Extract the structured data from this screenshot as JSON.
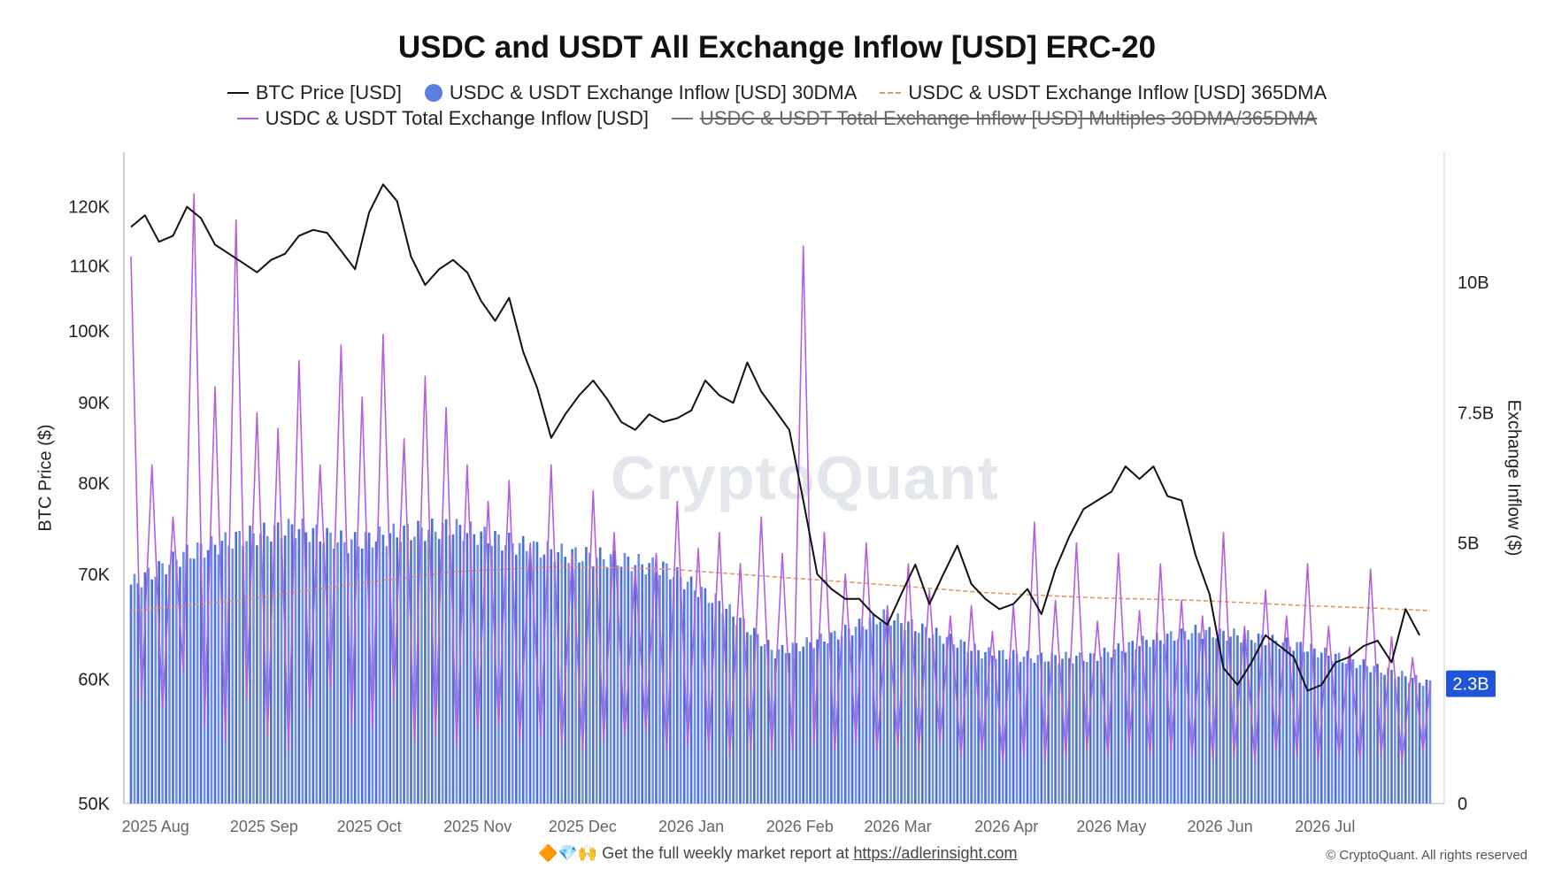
{
  "chart_data": {
    "type": "line",
    "title": "USDC and USDT All Exchange Inflow [USD] ERC-20",
    "legend": [
      {
        "name": "BTC Price [USD]",
        "style": "line",
        "color": "#111111"
      },
      {
        "name": "USDC & USDT Exchange Inflow [USD] 30DMA",
        "style": "dot",
        "color": "#5b7fe0"
      },
      {
        "name": "USDC & USDT Exchange Inflow [USD] 365DMA",
        "style": "dash",
        "color": "#e39a5b"
      },
      {
        "name": "USDC & USDT Total Exchange Inflow [USD]",
        "style": "line",
        "color": "#b45fe0"
      },
      {
        "name": "USDC & USDT Total Exchange Inflow [USD] Multiples 30DMA/365DMA",
        "style": "line",
        "color": "#111111",
        "hidden": true
      }
    ],
    "legend_placement": "top",
    "ylabel_left": "BTC Price ($)",
    "ylabel_right": "Exchange Inflow ($)",
    "y_left_scale": "log",
    "y_left_range": [
      50000,
      130000
    ],
    "y_left_ticks": [
      {
        "value": 50000,
        "label": "50K"
      },
      {
        "value": 60000,
        "label": "60K"
      },
      {
        "value": 70000,
        "label": "70K"
      },
      {
        "value": 80000,
        "label": "80K"
      },
      {
        "value": 90000,
        "label": "90K"
      },
      {
        "value": 100000,
        "label": "100K"
      },
      {
        "value": 110000,
        "label": "110K"
      },
      {
        "value": 120000,
        "label": "120K"
      }
    ],
    "y_right_range": [
      0,
      12500000000
    ],
    "y_right_ticks": [
      {
        "value": 0,
        "label": "0"
      },
      {
        "value": 5000000000,
        "label": "5B"
      },
      {
        "value": 7500000000,
        "label": "7.5B"
      },
      {
        "value": 10000000000,
        "label": "10B"
      }
    ],
    "x_ticks": [
      "2025 Aug",
      "2025 Sep",
      "2025 Oct",
      "2025 Nov",
      "2025 Dec",
      "2026 Jan",
      "2026 Feb",
      "2026 Mar",
      "2026 Apr",
      "2026 May",
      "2026 Jun",
      "2026 Jul"
    ],
    "x_range": [
      "2025-07-25",
      "2026-07-31"
    ],
    "current_value_label": {
      "value": 2300000000,
      "label": "2.3B",
      "color": "#1f55d6"
    },
    "grid": false,
    "btc_price": {
      "dates": [
        "2025-07-25",
        "2025-07-29",
        "2025-08-02",
        "2025-08-06",
        "2025-08-10",
        "2025-08-14",
        "2025-08-18",
        "2025-08-22",
        "2025-08-26",
        "2025-08-30",
        "2025-09-03",
        "2025-09-07",
        "2025-09-11",
        "2025-09-15",
        "2025-09-19",
        "2025-09-23",
        "2025-09-27",
        "2025-10-01",
        "2025-10-05",
        "2025-10-09",
        "2025-10-13",
        "2025-10-17",
        "2025-10-21",
        "2025-10-25",
        "2025-10-29",
        "2025-11-02",
        "2025-11-06",
        "2025-11-10",
        "2025-11-14",
        "2025-11-18",
        "2025-11-22",
        "2025-11-26",
        "2025-11-30",
        "2025-12-04",
        "2025-12-08",
        "2025-12-12",
        "2025-12-16",
        "2025-12-20",
        "2025-12-24",
        "2025-12-28",
        "2026-01-01",
        "2026-01-05",
        "2026-01-09",
        "2026-01-13",
        "2026-01-17",
        "2026-01-21",
        "2026-01-25",
        "2026-01-29",
        "2026-02-02",
        "2026-02-06",
        "2026-02-10",
        "2026-02-14",
        "2026-02-18",
        "2026-02-22",
        "2026-02-26",
        "2026-03-02",
        "2026-03-06",
        "2026-03-10",
        "2026-03-14",
        "2026-03-18",
        "2026-03-22",
        "2026-03-26",
        "2026-03-30",
        "2026-04-03",
        "2026-04-07",
        "2026-04-11",
        "2026-04-15",
        "2026-04-19",
        "2026-04-23",
        "2026-04-27",
        "2026-05-01",
        "2026-05-05",
        "2026-05-09",
        "2026-05-13",
        "2026-05-17",
        "2026-05-21",
        "2026-05-25",
        "2026-05-29",
        "2026-06-02",
        "2026-06-06",
        "2026-06-10",
        "2026-06-14",
        "2026-06-18",
        "2026-06-22",
        "2026-06-26",
        "2026-06-30",
        "2026-07-04",
        "2026-07-08",
        "2026-07-12",
        "2026-07-16",
        "2026-07-20",
        "2026-07-24",
        "2026-07-28"
      ],
      "values": [
        116500,
        118500,
        114000,
        115000,
        120000,
        118000,
        113500,
        112000,
        110500,
        109000,
        111000,
        112000,
        115000,
        116000,
        115500,
        112500,
        109500,
        119000,
        124000,
        121000,
        111500,
        107000,
        109500,
        111000,
        109000,
        104500,
        101500,
        105000,
        97000,
        92000,
        85500,
        88500,
        91000,
        93000,
        90500,
        87500,
        86500,
        88500,
        87500,
        88000,
        89000,
        93000,
        91000,
        90000,
        95500,
        91500,
        89000,
        86500,
        78000,
        70000,
        68500,
        67500,
        67500,
        66000,
        65000,
        68000,
        71000,
        67000,
        70000,
        73000,
        69000,
        67500,
        66500,
        67000,
        68500,
        66000,
        70500,
        74000,
        77000,
        78000,
        79000,
        82000,
        80500,
        82000,
        78500,
        78000,
        72000,
        68000,
        61000,
        59500,
        61500,
        64000,
        63000,
        62000,
        59000,
        59500,
        61500,
        62000,
        63000,
        63500,
        61500,
        66500,
        64000
      ]
    },
    "inflow_30dma": {
      "dates": [
        "2025-07-25",
        "2025-08-10",
        "2025-08-25",
        "2025-09-10",
        "2025-09-25",
        "2025-10-10",
        "2025-10-25",
        "2025-11-10",
        "2025-11-25",
        "2025-12-10",
        "2025-12-25",
        "2026-01-10",
        "2026-01-25",
        "2026-02-10",
        "2026-02-25",
        "2026-03-10",
        "2026-03-25",
        "2026-04-10",
        "2026-04-25",
        "2026-05-10",
        "2026-05-25",
        "2026-06-10",
        "2026-06-25",
        "2026-07-10",
        "2026-07-31"
      ],
      "values": [
        4200000000,
        4800000000,
        5100000000,
        5300000000,
        5000000000,
        5200000000,
        5300000000,
        5000000000,
        4800000000,
        4700000000,
        4500000000,
        3800000000,
        2900000000,
        3200000000,
        3600000000,
        3300000000,
        2900000000,
        2800000000,
        2800000000,
        3100000000,
        3300000000,
        3200000000,
        3000000000,
        2700000000,
        2300000000
      ]
    },
    "inflow_365dma": {
      "dates": [
        "2025-07-25",
        "2025-08-25",
        "2025-09-25",
        "2025-10-25",
        "2025-11-25",
        "2025-12-25",
        "2026-01-25",
        "2026-02-25",
        "2026-03-25",
        "2026-04-25",
        "2026-05-25",
        "2026-06-25",
        "2026-07-15",
        "2026-07-31"
      ],
      "values": [
        3700000000,
        3900000000,
        4200000000,
        4450000000,
        4550000000,
        4500000000,
        4350000000,
        4200000000,
        4050000000,
        3950000000,
        3900000000,
        3800000000,
        3750000000,
        3700000000
      ]
    },
    "inflow_total_daily": {
      "dates": [
        "2025-07-25",
        "2025-07-28",
        "2025-07-31",
        "2025-08-03",
        "2025-08-06",
        "2025-08-09",
        "2025-08-12",
        "2025-08-15",
        "2025-08-18",
        "2025-08-21",
        "2025-08-24",
        "2025-08-27",
        "2025-08-30",
        "2025-09-02",
        "2025-09-05",
        "2025-09-08",
        "2025-09-11",
        "2025-09-14",
        "2025-09-17",
        "2025-09-20",
        "2025-09-23",
        "2025-09-26",
        "2025-09-29",
        "2025-10-02",
        "2025-10-05",
        "2025-10-08",
        "2025-10-11",
        "2025-10-14",
        "2025-10-17",
        "2025-10-20",
        "2025-10-23",
        "2025-10-26",
        "2025-10-29",
        "2025-11-01",
        "2025-11-04",
        "2025-11-07",
        "2025-11-10",
        "2025-11-13",
        "2025-11-16",
        "2025-11-19",
        "2025-11-22",
        "2025-11-25",
        "2025-11-28",
        "2025-12-01",
        "2025-12-04",
        "2025-12-07",
        "2025-12-10",
        "2025-12-13",
        "2025-12-16",
        "2025-12-19",
        "2025-12-22",
        "2025-12-25",
        "2025-12-28",
        "2025-12-31",
        "2026-01-03",
        "2026-01-06",
        "2026-01-09",
        "2026-01-12",
        "2026-01-15",
        "2026-01-18",
        "2026-01-21",
        "2026-01-24",
        "2026-01-27",
        "2026-01-30",
        "2026-02-02",
        "2026-02-05",
        "2026-02-08",
        "2026-02-11",
        "2026-02-14",
        "2026-02-17",
        "2026-02-20",
        "2026-02-23",
        "2026-02-26",
        "2026-03-01",
        "2026-03-04",
        "2026-03-07",
        "2026-03-10",
        "2026-03-13",
        "2026-03-16",
        "2026-03-19",
        "2026-03-22",
        "2026-03-25",
        "2026-03-28",
        "2026-03-31",
        "2026-04-03",
        "2026-04-06",
        "2026-04-09",
        "2026-04-12",
        "2026-04-15",
        "2026-04-18",
        "2026-04-21",
        "2026-04-24",
        "2026-04-27",
        "2026-04-30",
        "2026-05-03",
        "2026-05-06",
        "2026-05-09",
        "2026-05-12",
        "2026-05-15",
        "2026-05-18",
        "2026-05-21",
        "2026-05-24",
        "2026-05-27",
        "2026-05-30",
        "2026-06-02",
        "2026-06-05",
        "2026-06-08",
        "2026-06-11",
        "2026-06-14",
        "2026-06-17",
        "2026-06-20",
        "2026-06-23",
        "2026-06-26",
        "2026-06-29",
        "2026-07-02",
        "2026-07-05",
        "2026-07-08",
        "2026-07-11",
        "2026-07-14",
        "2026-07-17",
        "2026-07-20",
        "2026-07-23",
        "2026-07-26",
        "2026-07-29",
        "2026-07-31"
      ],
      "values": [
        10500000000,
        2000000000,
        6500000000,
        1800000000,
        5500000000,
        2500000000,
        11700000000,
        1500000000,
        8000000000,
        1200000000,
        11200000000,
        2000000000,
        7500000000,
        1300000000,
        7200000000,
        1000000000,
        8500000000,
        1800000000,
        6500000000,
        2200000000,
        8800000000,
        1500000000,
        7800000000,
        1400000000,
        9000000000,
        2000000000,
        7000000000,
        1200000000,
        8200000000,
        1300000000,
        7600000000,
        1100000000,
        6500000000,
        1400000000,
        5800000000,
        1500000000,
        6200000000,
        1200000000,
        5000000000,
        1300000000,
        6500000000,
        1100000000,
        4800000000,
        1000000000,
        6000000000,
        1200000000,
        5200000000,
        1300000000,
        4500000000,
        1400000000,
        4800000000,
        1000000000,
        5800000000,
        1100000000,
        4900000000,
        1000000000,
        5200000000,
        900000000,
        4600000000,
        1000000000,
        5500000000,
        1000000000,
        4800000000,
        1000000000,
        10700000000,
        1100000000,
        5200000000,
        1000000000,
        4400000000,
        1200000000,
        5000000000,
        1000000000,
        3800000000,
        1100000000,
        4600000000,
        1000000000,
        4100000000,
        1200000000,
        3600000000,
        900000000,
        3800000000,
        1000000000,
        3300000000,
        800000000,
        3800000000,
        900000000,
        5400000000,
        800000000,
        3900000000,
        900000000,
        5000000000,
        1000000000,
        3500000000,
        900000000,
        4800000000,
        1100000000,
        3700000000,
        900000000,
        4600000000,
        1000000000,
        3900000000,
        900000000,
        3600000000,
        800000000,
        5200000000,
        900000000,
        3400000000,
        800000000,
        4100000000,
        1000000000,
        3600000000,
        900000000,
        4600000000,
        800000000,
        3400000000,
        900000000,
        3000000000,
        800000000,
        4500000000,
        900000000,
        3200000000,
        800000000,
        2800000000,
        1000000000,
        2300000000
      ]
    }
  },
  "footer": {
    "prefix": "Get the full weekly market report at",
    "link": "https://adlerinsight.com"
  },
  "watermark": "CryptoQuant",
  "copyright": "© CryptoQuant. All rights reserved"
}
